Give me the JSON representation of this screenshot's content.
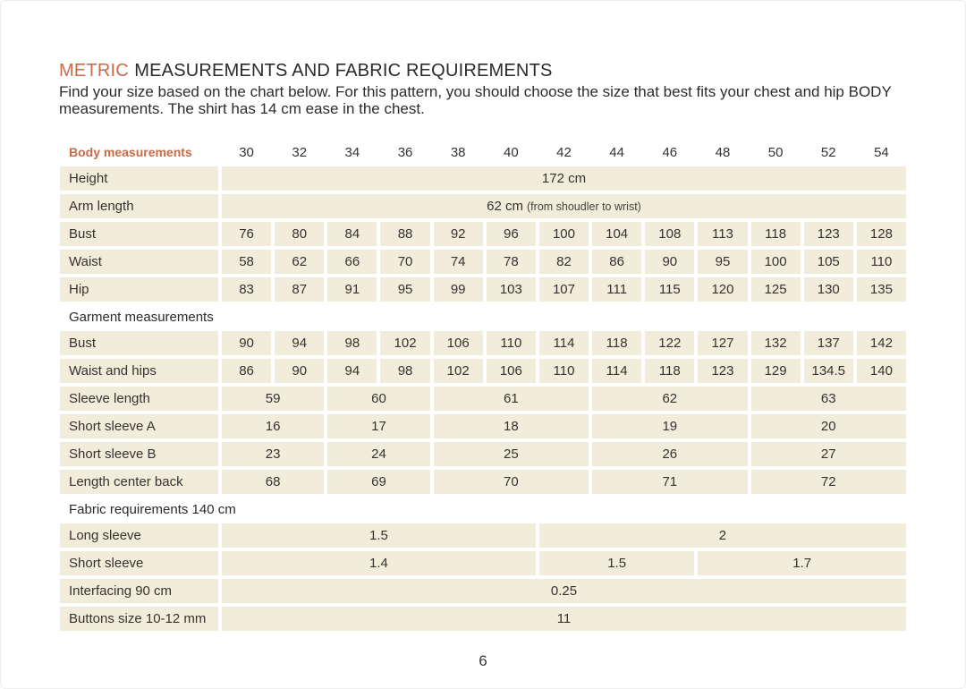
{
  "page": {
    "title_accent": "METRIC",
    "title_rest": "MEASUREMENTS AND FABRIC REQUIREMENTS",
    "subtitle": "Find your size based on the chart below. For this pattern, you should choose the size that best fits your chest and hip BODY\nmeasurements. The shirt has 14 cm ease in the chest.",
    "page_number": "6"
  },
  "colors": {
    "accent": "#c86b4a",
    "cell-bg": "#f2ecdb",
    "text": "#35332f",
    "heading": "#2b2a28"
  },
  "table": {
    "header": {
      "label": "Body measurements",
      "sizes": [
        "30",
        "32",
        "34",
        "36",
        "38",
        "40",
        "42",
        "44",
        "46",
        "48",
        "50",
        "52",
        "54"
      ]
    },
    "rows": [
      {
        "type": "data",
        "label": "Height",
        "cells": [
          {
            "value": "172 cm",
            "span": 13
          }
        ]
      },
      {
        "type": "data",
        "label": "Arm length",
        "cells": [
          {
            "value": "62 cm",
            "note": "(from shoudler to wrist)",
            "span": 13
          }
        ]
      },
      {
        "type": "data",
        "label": "Bust",
        "cells": [
          {
            "value": "76"
          },
          {
            "value": "80"
          },
          {
            "value": "84"
          },
          {
            "value": "88"
          },
          {
            "value": "92"
          },
          {
            "value": "96"
          },
          {
            "value": "100"
          },
          {
            "value": "104"
          },
          {
            "value": "108"
          },
          {
            "value": "113"
          },
          {
            "value": "118"
          },
          {
            "value": "123"
          },
          {
            "value": "128"
          }
        ]
      },
      {
        "type": "data",
        "label": "Waist",
        "cells": [
          {
            "value": "58"
          },
          {
            "value": "62"
          },
          {
            "value": "66"
          },
          {
            "value": "70"
          },
          {
            "value": "74"
          },
          {
            "value": "78"
          },
          {
            "value": "82"
          },
          {
            "value": "86"
          },
          {
            "value": "90"
          },
          {
            "value": "95"
          },
          {
            "value": "100"
          },
          {
            "value": "105"
          },
          {
            "value": "110"
          }
        ]
      },
      {
        "type": "data",
        "label": "Hip",
        "cells": [
          {
            "value": "83"
          },
          {
            "value": "87"
          },
          {
            "value": "91"
          },
          {
            "value": "95"
          },
          {
            "value": "99"
          },
          {
            "value": "103"
          },
          {
            "value": "107"
          },
          {
            "value": "111"
          },
          {
            "value": "115"
          },
          {
            "value": "120"
          },
          {
            "value": "125"
          },
          {
            "value": "130"
          },
          {
            "value": "135"
          }
        ]
      },
      {
        "type": "section",
        "label": "Garment measurements"
      },
      {
        "type": "data",
        "label": "Bust",
        "cells": [
          {
            "value": "90"
          },
          {
            "value": "94"
          },
          {
            "value": "98"
          },
          {
            "value": "102"
          },
          {
            "value": "106"
          },
          {
            "value": "110"
          },
          {
            "value": "114"
          },
          {
            "value": "118"
          },
          {
            "value": "122"
          },
          {
            "value": "127"
          },
          {
            "value": "132"
          },
          {
            "value": "137"
          },
          {
            "value": "142"
          }
        ]
      },
      {
        "type": "data",
        "label": "Waist and hips",
        "cells": [
          {
            "value": "86"
          },
          {
            "value": "90"
          },
          {
            "value": "94"
          },
          {
            "value": "98"
          },
          {
            "value": "102"
          },
          {
            "value": "106"
          },
          {
            "value": "110"
          },
          {
            "value": "114"
          },
          {
            "value": "118"
          },
          {
            "value": "123"
          },
          {
            "value": "129"
          },
          {
            "value": "134.5"
          },
          {
            "value": "140"
          }
        ]
      },
      {
        "type": "data",
        "label": "Sleeve length",
        "cells": [
          {
            "value": "59",
            "span": 2
          },
          {
            "value": "60",
            "span": 2
          },
          {
            "value": "61",
            "span": 3
          },
          {
            "value": "62",
            "span": 3
          },
          {
            "value": "63",
            "span": 3
          }
        ]
      },
      {
        "type": "data",
        "label": "Short sleeve A",
        "cells": [
          {
            "value": "16",
            "span": 2
          },
          {
            "value": "17",
            "span": 2
          },
          {
            "value": "18",
            "span": 3
          },
          {
            "value": "19",
            "span": 3
          },
          {
            "value": "20",
            "span": 3
          }
        ]
      },
      {
        "type": "data",
        "label": "Short sleeve B",
        "cells": [
          {
            "value": "23",
            "span": 2
          },
          {
            "value": "24",
            "span": 2
          },
          {
            "value": "25",
            "span": 3
          },
          {
            "value": "26",
            "span": 3
          },
          {
            "value": "27",
            "span": 3
          }
        ]
      },
      {
        "type": "data",
        "label": "Length center back",
        "cells": [
          {
            "value": "68",
            "span": 2
          },
          {
            "value": "69",
            "span": 2
          },
          {
            "value": "70",
            "span": 3
          },
          {
            "value": "71",
            "span": 3
          },
          {
            "value": "72",
            "span": 3
          }
        ]
      },
      {
        "type": "section",
        "label": "Fabric requirements 140 cm"
      },
      {
        "type": "data",
        "label": "Long sleeve",
        "cells": [
          {
            "value": "1.5",
            "span": 6
          },
          {
            "value": "2",
            "span": 7
          }
        ]
      },
      {
        "type": "data",
        "label": "Short sleeve",
        "cells": [
          {
            "value": "1.4",
            "span": 6
          },
          {
            "value": "1.5",
            "span": 3
          },
          {
            "value": "1.7",
            "span": 4
          }
        ]
      },
      {
        "type": "data",
        "label": "Interfacing 90 cm",
        "cells": [
          {
            "value": "0.25",
            "span": 13
          }
        ]
      },
      {
        "type": "data",
        "label": "Buttons size 10-12 mm",
        "cells": [
          {
            "value": "11",
            "span": 13
          }
        ]
      }
    ]
  }
}
